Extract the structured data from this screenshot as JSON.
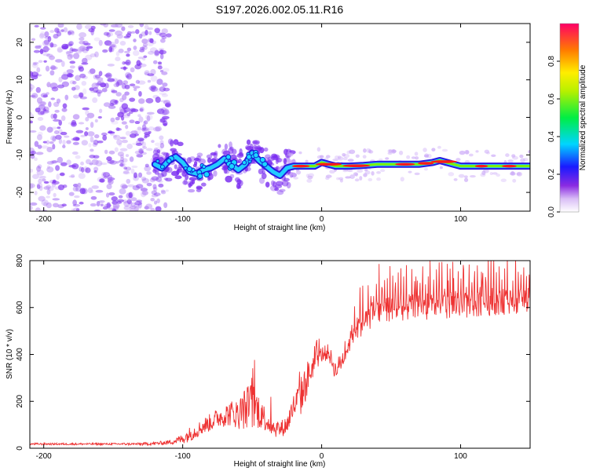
{
  "title": "S197.2026.002.05.11.R16",
  "colors": {
    "snr_line": "#ee3333",
    "ridge": "#22ccff",
    "scatter": "#7a2cf0",
    "background": "#ffffff",
    "axis": "#000000"
  },
  "chart_data": [
    {
      "type": "heatmap",
      "xlabel": "Height of straight line (km)",
      "ylabel": "Frequency (Hz)",
      "xlim": [
        -210,
        150
      ],
      "ylim": [
        -25,
        25
      ],
      "xticks": [
        -200,
        -100,
        0,
        100
      ],
      "yticks": [
        20,
        10,
        0,
        -10,
        -20
      ],
      "ridge": {
        "x": [
          -120,
          -115,
          -110,
          -105,
          -100,
          -95,
          -90,
          -85,
          -80,
          -75,
          -70,
          -65,
          -60,
          -55,
          -50,
          -45,
          -40,
          -35,
          -30,
          -25,
          -20,
          -15,
          -10,
          -5,
          0,
          5,
          10,
          20,
          30,
          40,
          50,
          60,
          70,
          80,
          85,
          90,
          95,
          100,
          105,
          110,
          120,
          130,
          140,
          150
        ],
        "y": [
          -12.5,
          -13.5,
          -11.5,
          -10.5,
          -12.0,
          -14.5,
          -15.0,
          -14.0,
          -13.5,
          -12.5,
          -11.0,
          -12.5,
          -14.0,
          -12.5,
          -9.5,
          -11.5,
          -13.0,
          -14.5,
          -15.5,
          -13.5,
          -13.0,
          -13.0,
          -13.0,
          -13.0,
          -12.0,
          -12.5,
          -13.0,
          -13.0,
          -12.8,
          -12.5,
          -12.5,
          -12.5,
          -12.5,
          -12.0,
          -11.5,
          -12.0,
          -12.5,
          -13.0,
          -13.0,
          -13.0,
          -13.0,
          -13.0,
          -13.0,
          -13.0
        ]
      },
      "noise_region_x": [
        -210,
        -120
      ],
      "colorbar": {
        "label": "Normalized spectral amplitude",
        "range": [
          0,
          1
        ],
        "ticks": [
          0.0,
          0.2,
          0.4,
          0.6,
          0.8
        ]
      }
    },
    {
      "type": "line",
      "xlabel": "Height of straight line (km)",
      "ylabel": "SNR (10 * v/v)",
      "xlim": [
        -210,
        150
      ],
      "ylim": [
        0,
        800
      ],
      "xticks": [
        -200,
        -100,
        0,
        100
      ],
      "yticks": [
        0,
        200,
        400,
        600,
        800
      ],
      "series": [
        {
          "name": "SNR",
          "x": [
            -210,
            -190,
            -170,
            -150,
            -130,
            -120,
            -110,
            -100,
            -95,
            -90,
            -85,
            -80,
            -75,
            -70,
            -65,
            -60,
            -55,
            -50,
            -45,
            -40,
            -35,
            -30,
            -25,
            -20,
            -15,
            -10,
            -5,
            0,
            5,
            10,
            15,
            20,
            25,
            30,
            35,
            40,
            45,
            50,
            60,
            70,
            80,
            90,
            100,
            110,
            120,
            130,
            140,
            150
          ],
          "y": [
            18,
            18,
            18,
            18,
            18,
            20,
            25,
            40,
            60,
            75,
            95,
            110,
            130,
            140,
            150,
            145,
            170,
            180,
            160,
            120,
            90,
            80,
            100,
            180,
            220,
            300,
            370,
            400,
            410,
            330,
            380,
            450,
            510,
            540,
            565,
            580,
            590,
            595,
            600,
            600,
            610,
            610,
            605,
            610,
            620,
            625,
            625,
            630
          ],
          "noise_amplitude": [
            6,
            6,
            6,
            6,
            8,
            10,
            14,
            30,
            45,
            45,
            50,
            55,
            60,
            70,
            80,
            90,
            130,
            150,
            110,
            70,
            60,
            50,
            60,
            80,
            120,
            110,
            60,
            50,
            50,
            60,
            60,
            60,
            70,
            80,
            80,
            80,
            80,
            80,
            80,
            80,
            90,
            90,
            80,
            80,
            80,
            80,
            80,
            80
          ]
        }
      ]
    }
  ]
}
